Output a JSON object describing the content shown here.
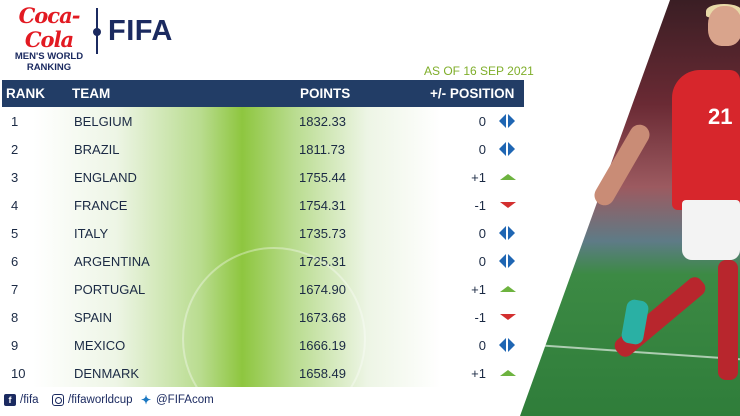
{
  "header": {
    "sponsor_script": "Coca-Cola",
    "sponsor_line1": "MEN'S WORLD",
    "sponsor_line2": "RANKING",
    "fifa_logo": "FIFA",
    "as_of": "AS OF 16 SEP 2021"
  },
  "table": {
    "columns": {
      "rank": "RANK",
      "team": "TEAM",
      "points": "POINTS",
      "position": "+/- POSITION"
    },
    "rows": [
      {
        "rank": "1",
        "team": "BELGIUM",
        "points": "1832.33",
        "change": "0",
        "trend": "same"
      },
      {
        "rank": "2",
        "team": "BRAZIL",
        "points": "1811.73",
        "change": "0",
        "trend": "same"
      },
      {
        "rank": "3",
        "team": "ENGLAND",
        "points": "1755.44",
        "change": "+1",
        "trend": "up"
      },
      {
        "rank": "4",
        "team": "FRANCE",
        "points": "1754.31",
        "change": "-1",
        "trend": "down"
      },
      {
        "rank": "5",
        "team": "ITALY",
        "points": "1735.73",
        "change": "0",
        "trend": "same"
      },
      {
        "rank": "6",
        "team": "ARGENTINA",
        "points": "1725.31",
        "change": "0",
        "trend": "same"
      },
      {
        "rank": "7",
        "team": "PORTUGAL",
        "points": "1674.90",
        "change": "+1",
        "trend": "up"
      },
      {
        "rank": "8",
        "team": "SPAIN",
        "points": "1673.68",
        "change": "-1",
        "trend": "down"
      },
      {
        "rank": "9",
        "team": "MEXICO",
        "points": "1666.19",
        "change": "0",
        "trend": "same"
      },
      {
        "rank": "10",
        "team": "DENMARK",
        "points": "1658.49",
        "change": "+1",
        "trend": "up"
      }
    ]
  },
  "footer": {
    "facebook": "/fifa",
    "instagram": "/fifaworldcup",
    "twitter": "@FIFAcom"
  },
  "photo": {
    "jersey_number": "21"
  },
  "colors": {
    "header_bar": "#223d66",
    "accent_green": "#8ec63f",
    "brand_red": "#e21a22",
    "up": "#6db33f",
    "down": "#d32f2f",
    "same": "#1f66b3"
  },
  "icons": {
    "same": "left-right-arrows-icon",
    "up": "triangle-up-icon",
    "down": "triangle-down-icon",
    "facebook": "facebook-icon",
    "instagram": "instagram-icon",
    "twitter": "twitter-icon"
  }
}
